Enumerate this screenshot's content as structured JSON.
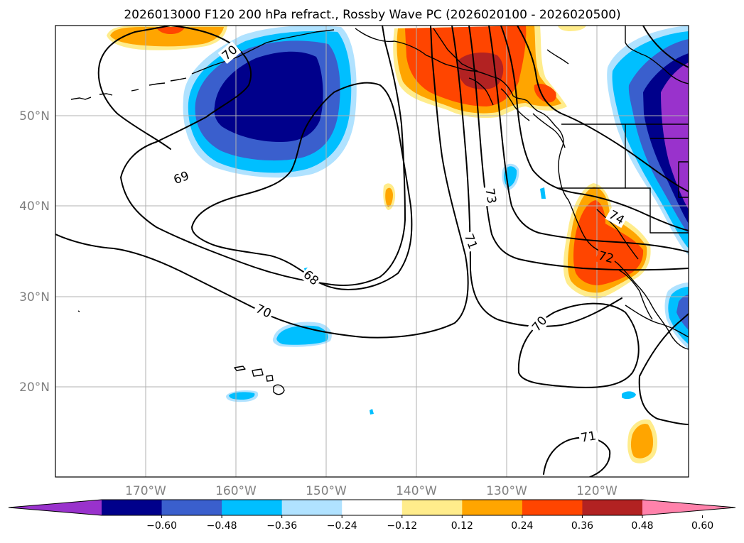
{
  "title": "2026013000 F120 200 hPa refract., Rossby Wave PC (2026020100 - 2026020500)",
  "lat_labels": [
    "50°N",
    "40°N",
    "30°N",
    "20°N"
  ],
  "lon_labels": [
    "170°W",
    "160°W",
    "150°W",
    "140°W",
    "130°W",
    "120°W"
  ],
  "colorbar": {
    "ticks": [
      "−0.60",
      "−0.48",
      "−0.36",
      "−0.24",
      "−0.12",
      "0.12",
      "0.24",
      "0.36",
      "0.48",
      "0.60"
    ],
    "colors": [
      "#9932cc",
      "#00008b",
      "#3a5fcd",
      "#00bfff",
      "#b0e2ff",
      "#ffffff",
      "#ffec8b",
      "#ffa500",
      "#ff4500",
      "#b22222",
      "#ff82ab"
    ]
  },
  "contour_labels": [
    {
      "text": "70"
    },
    {
      "text": "69"
    },
    {
      "text": "68"
    },
    {
      "text": "70"
    },
    {
      "text": "73"
    },
    {
      "text": "71"
    },
    {
      "text": "74"
    },
    {
      "text": "72"
    },
    {
      "text": "70"
    },
    {
      "text": "71"
    }
  ]
}
